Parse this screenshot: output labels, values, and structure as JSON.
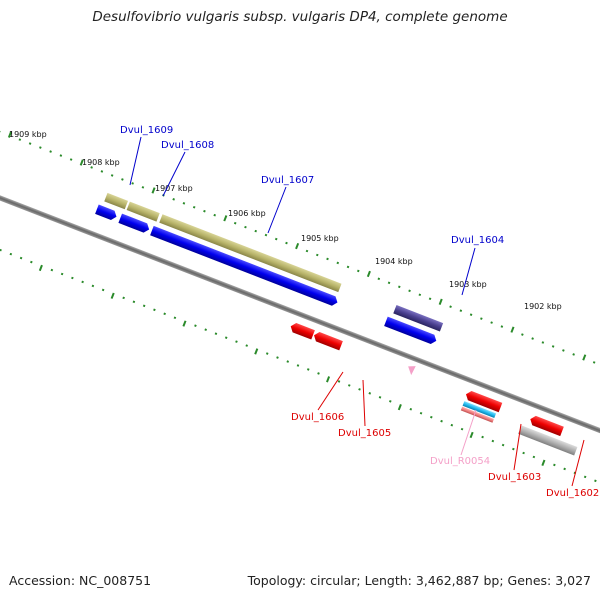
{
  "title": "Desulfovibrio vulgaris subsp. vulgaris DP4, complete genome",
  "footer": {
    "accession": "Accession: NC_008751",
    "summary": "Topology: circular; Length: 3,462,887 bp; Genes: 3,027"
  },
  "colors": {
    "forward_cds": "#0000ee",
    "forward_gene": "#b8b46a",
    "reverse_cds": "#ee0000",
    "reverse_gene": "#f08080",
    "rna": "#f4a0c8",
    "trna_cyan": "#22bbee",
    "pseudo_purple": "#4a4090",
    "misc_gray": "#b0b0b0",
    "backbone": "#777777",
    "ticks": "#2a8a2a"
  },
  "scale_labels": [
    "1909 kbp",
    "1908 kbp",
    "1907 kbp",
    "1906 kbp",
    "1905 kbp",
    "1904 kbp",
    "1903 kbp",
    "1902 kbp"
  ],
  "gene_labels": [
    {
      "text": "Dvul_1609",
      "strand": "forward"
    },
    {
      "text": "Dvul_1608",
      "strand": "forward"
    },
    {
      "text": "Dvul_1607",
      "strand": "forward"
    },
    {
      "text": "Dvul_1604",
      "strand": "forward"
    },
    {
      "text": "Dvul_1606",
      "strand": "reverse"
    },
    {
      "text": "Dvul_1605",
      "strand": "reverse"
    },
    {
      "text": "Dvul_R0054",
      "strand": "rna"
    },
    {
      "text": "Dvul_1603",
      "strand": "reverse"
    },
    {
      "text": "Dvul_1602",
      "strand": "reverse"
    }
  ]
}
